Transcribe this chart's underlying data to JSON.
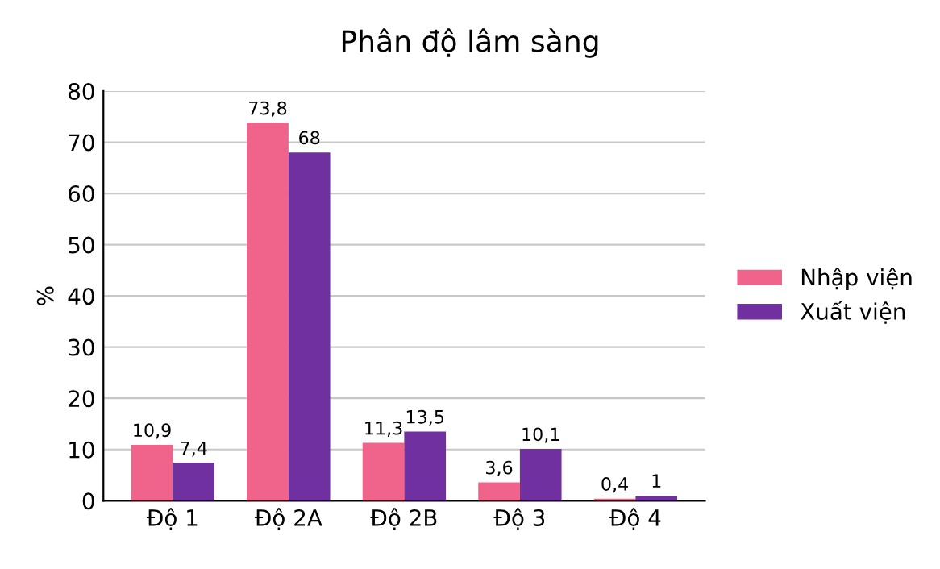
{
  "chart_data": {
    "type": "bar",
    "title": "Phân độ lâm sàng",
    "ylabel": "%",
    "categories": [
      "Độ 1",
      "Độ 2A",
      "Độ 2B",
      "Độ 3",
      "Độ 4"
    ],
    "series": [
      {
        "name": "Nhập viện",
        "color": "#f0648c",
        "values": [
          10.9,
          73.8,
          11.3,
          3.6,
          0.4
        ],
        "value_labels": [
          "10,9",
          "73,8",
          "11,3",
          "3,6",
          "0,4"
        ]
      },
      {
        "name": "Xuất viện",
        "color": "#7030a0",
        "values": [
          7.4,
          68,
          13.5,
          10.1,
          1
        ],
        "value_labels": [
          "7,4",
          "68",
          "13,5",
          "10,1",
          "1"
        ]
      }
    ],
    "ylim": [
      0,
      80
    ],
    "yticks": [
      0,
      10,
      20,
      30,
      40,
      50,
      60,
      70,
      80
    ],
    "grid": "y",
    "legend": "right"
  }
}
